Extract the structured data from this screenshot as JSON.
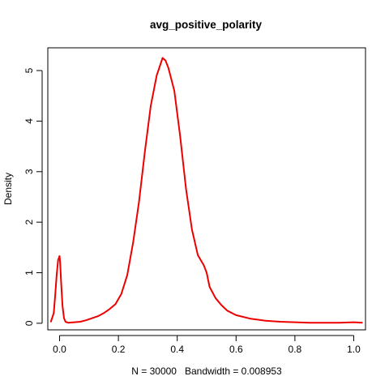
{
  "chart_data": {
    "type": "line",
    "title": "avg_positive_polarity",
    "xlabel": "N = 30000   Bandwidth = 0.008953",
    "ylabel": "Density",
    "xlim": [
      -0.04,
      1.04
    ],
    "ylim": [
      -0.13,
      5.45
    ],
    "x_ticks": [
      0.0,
      0.2,
      0.4,
      0.6,
      0.8,
      1.0
    ],
    "x_tick_labels": [
      "0.0",
      "0.2",
      "0.4",
      "0.6",
      "0.8",
      "1.0"
    ],
    "y_ticks": [
      0,
      1,
      2,
      3,
      4,
      5
    ],
    "y_tick_labels": [
      "0",
      "1",
      "2",
      "3",
      "4",
      "5"
    ],
    "grid": false,
    "series": [
      {
        "color": "#ee0000",
        "x": [
          -0.03,
          -0.02,
          -0.015,
          -0.01,
          -0.005,
          0.0,
          0.002,
          0.005,
          0.01,
          0.015,
          0.02,
          0.03,
          0.05,
          0.07,
          0.09,
          0.11,
          0.13,
          0.15,
          0.17,
          0.19,
          0.21,
          0.23,
          0.25,
          0.27,
          0.29,
          0.31,
          0.33,
          0.35,
          0.36,
          0.37,
          0.39,
          0.41,
          0.43,
          0.45,
          0.47,
          0.49,
          0.5,
          0.51,
          0.53,
          0.55,
          0.57,
          0.6,
          0.65,
          0.7,
          0.75,
          0.8,
          0.85,
          0.9,
          0.95,
          1.0,
          1.03
        ],
        "values": [
          0.02,
          0.2,
          0.55,
          0.95,
          1.25,
          1.33,
          1.2,
          0.85,
          0.35,
          0.1,
          0.03,
          0.01,
          0.02,
          0.03,
          0.06,
          0.1,
          0.14,
          0.2,
          0.28,
          0.38,
          0.58,
          0.95,
          1.6,
          2.4,
          3.4,
          4.3,
          4.9,
          5.25,
          5.2,
          5.05,
          4.6,
          3.7,
          2.65,
          1.85,
          1.35,
          1.15,
          1.0,
          0.72,
          0.5,
          0.36,
          0.25,
          0.16,
          0.09,
          0.05,
          0.03,
          0.02,
          0.01,
          0.01,
          0.01,
          0.02,
          0.01
        ]
      }
    ]
  }
}
